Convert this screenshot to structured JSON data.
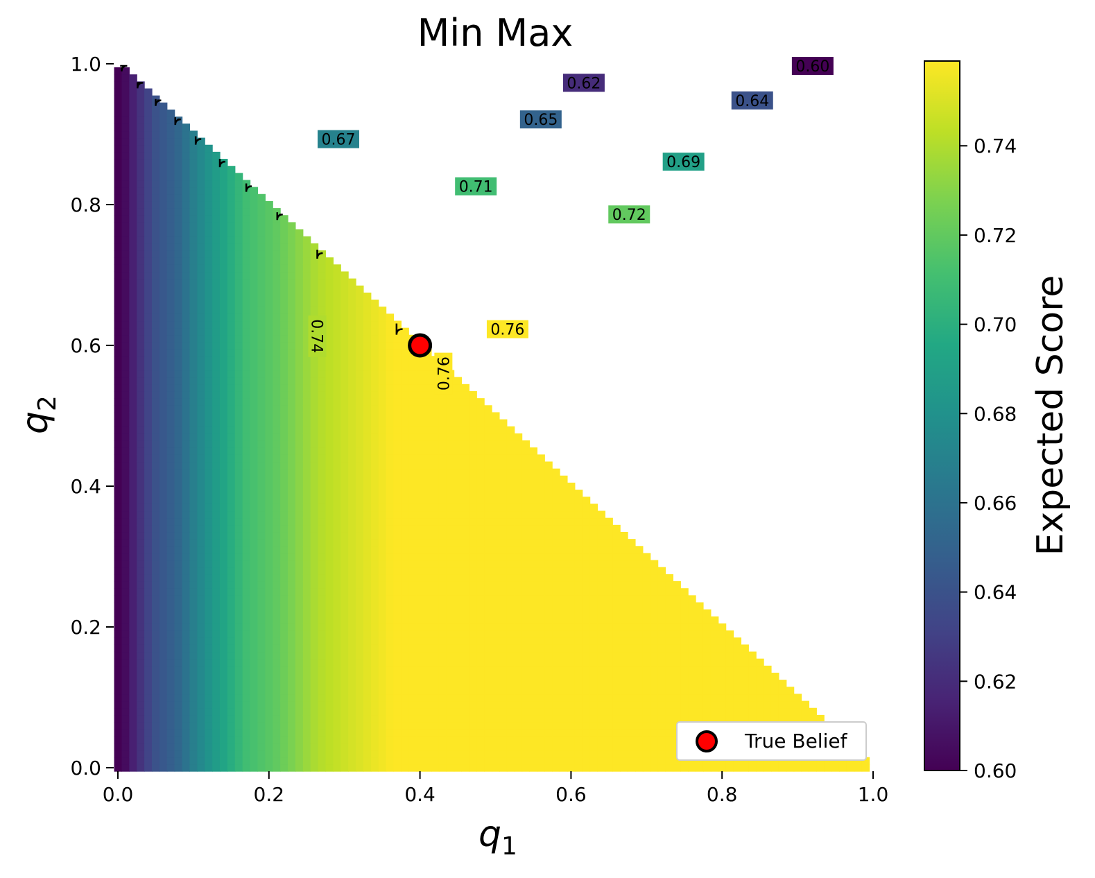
{
  "chart_data": {
    "type": "heatmap",
    "title": "Min Max",
    "xlabel": "q",
    "xlabel_sub": "1",
    "ylabel": "q",
    "ylabel_sub": "2",
    "xlim": [
      0,
      1
    ],
    "ylim": [
      0,
      1
    ],
    "xticks": [
      "0.0",
      "0.2",
      "0.4",
      "0.6",
      "0.8",
      "1.0"
    ],
    "yticks": [
      "0.0",
      "0.2",
      "0.4",
      "0.6",
      "0.8",
      "1.0"
    ],
    "domain": "q1 + q2 <= 1",
    "colormap": "viridis",
    "colorbar": {
      "label": "Expected Score",
      "range": [
        0.6,
        0.759
      ],
      "ticks": [
        "0.60",
        "0.62",
        "0.64",
        "0.66",
        "0.68",
        "0.70",
        "0.72",
        "0.74"
      ]
    },
    "contours": [
      {
        "level": 0.6,
        "label": "0.60",
        "corner": [
          0.005,
          0.997
        ]
      },
      {
        "level": 0.62,
        "label": "0.62",
        "corner": [
          0.026,
          0.973
        ]
      },
      {
        "level": 0.64,
        "label": "0.64",
        "corner": [
          0.05,
          0.948
        ]
      },
      {
        "level": 0.65,
        "label": "0.65",
        "corner": [
          0.076,
          0.921
        ]
      },
      {
        "level": 0.67,
        "label": "0.67",
        "corner": [
          0.103,
          0.893
        ]
      },
      {
        "level": 0.69,
        "label": "0.69",
        "corner": [
          0.135,
          0.861
        ]
      },
      {
        "level": 0.71,
        "label": "0.71",
        "corner": [
          0.17,
          0.826
        ]
      },
      {
        "level": 0.72,
        "label": "0.72",
        "corner": [
          0.211,
          0.786
        ]
      },
      {
        "level": 0.74,
        "label": "0.74",
        "corner": [
          0.264,
          0.731
        ]
      },
      {
        "level": 0.76,
        "label": "0.76",
        "corner": [
          0.369,
          0.623
        ]
      },
      {
        "level": 0.76,
        "label": "0.76",
        "corner": [
          0.431,
          0.567
        ]
      }
    ],
    "points": [
      {
        "name": "True Belief",
        "q1": 0.4,
        "q2": 0.6,
        "color": "#ff0000"
      }
    ],
    "legend": {
      "entries": [
        "True Belief"
      ],
      "position": "bottom-right"
    }
  }
}
